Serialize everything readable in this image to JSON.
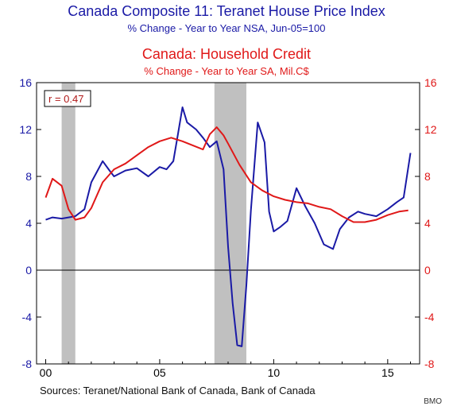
{
  "chart_data": {
    "type": "line",
    "titles": [
      {
        "text": "Canada Composite 11: Teranet House Price Index",
        "color": "#1a1aa6"
      },
      {
        "text": "% Change - Year to Year   NSA, Jun-05=100",
        "color": "#1a1aa6"
      },
      {
        "text": "Canada: Household Credit",
        "color": "#e01818"
      },
      {
        "text": "% Change - Year to Year   SA, Mil.C$",
        "color": "#e01818"
      }
    ],
    "annotation": "r = 0.47",
    "x_ticks": [
      "00",
      "05",
      "10",
      "15"
    ],
    "x_tick_values": [
      2000,
      2005,
      2010,
      2015
    ],
    "xlim": [
      1999.6,
      2016.4
    ],
    "left_axis": {
      "ylim": [
        -8,
        16
      ],
      "ticks": [
        -8,
        -4,
        0,
        4,
        8,
        12,
        16
      ],
      "color": "#1a1aa6"
    },
    "right_axis": {
      "ylim": [
        -8,
        16
      ],
      "ticks": [
        -8,
        -4,
        0,
        4,
        8,
        12,
        16
      ],
      "color": "#e01818"
    },
    "recessions": [
      [
        2000.7,
        2001.3
      ],
      [
        2007.4,
        2008.8
      ]
    ],
    "series": [
      {
        "color": "#1a1aa6",
        "axis": "left",
        "x": [
          2000.0,
          2000.3,
          2000.7,
          2001.0,
          2001.3,
          2001.7,
          2002.0,
          2002.5,
          2002.8,
          2003.0,
          2003.5,
          2004.0,
          2004.5,
          2005.0,
          2005.3,
          2005.6,
          2005.8,
          2006.0,
          2006.2,
          2006.6,
          2006.9,
          2007.2,
          2007.5,
          2007.8,
          2008.0,
          2008.2,
          2008.4,
          2008.6,
          2008.8,
          2009.0,
          2009.3,
          2009.6,
          2009.8,
          2010.0,
          2010.3,
          2010.6,
          2011.0,
          2011.4,
          2011.8,
          2012.2,
          2012.6,
          2012.9,
          2013.3,
          2013.7,
          2014.0,
          2014.5,
          2015.0,
          2015.4,
          2015.7,
          2016.0
        ],
        "values": [
          4.3,
          4.5,
          4.4,
          4.5,
          4.6,
          5.2,
          7.5,
          9.3,
          8.5,
          8.0,
          8.5,
          8.7,
          8.0,
          8.8,
          8.6,
          9.3,
          11.6,
          13.9,
          12.6,
          12.0,
          11.3,
          10.5,
          11.0,
          8.6,
          2.0,
          -2.8,
          -6.4,
          -6.5,
          -1.3,
          5.1,
          12.6,
          10.9,
          5.0,
          3.3,
          3.7,
          4.2,
          7.0,
          5.4,
          4.0,
          2.2,
          1.8,
          3.5,
          4.5,
          5.0,
          4.8,
          4.6,
          5.2,
          5.8,
          6.2,
          10.0
        ]
      },
      {
        "color": "#e01818",
        "axis": "right",
        "x": [
          2000.0,
          2000.3,
          2000.7,
          2001.0,
          2001.3,
          2001.7,
          2002.0,
          2002.5,
          2003.0,
          2003.5,
          2004.0,
          2004.5,
          2005.0,
          2005.5,
          2006.0,
          2006.5,
          2006.9,
          2007.2,
          2007.5,
          2007.8,
          2008.0,
          2008.5,
          2009.0,
          2009.5,
          2010.0,
          2010.5,
          2011.0,
          2011.5,
          2012.0,
          2012.5,
          2013.0,
          2013.5,
          2014.0,
          2014.5,
          2015.0,
          2015.5,
          2015.9
        ],
        "values": [
          6.2,
          7.8,
          7.2,
          5.2,
          4.3,
          4.5,
          5.3,
          7.5,
          8.6,
          9.1,
          9.8,
          10.5,
          11.0,
          11.3,
          11.0,
          10.6,
          10.3,
          11.6,
          12.2,
          11.5,
          10.8,
          9.0,
          7.5,
          6.8,
          6.3,
          6.0,
          5.8,
          5.7,
          5.4,
          5.2,
          4.6,
          4.1,
          4.1,
          4.3,
          4.7,
          5.0,
          5.1
        ]
      }
    ]
  },
  "footer": {
    "source": "Sources:  Teranet/National Bank of Canada, Bank of Canada",
    "credit": "BMO"
  }
}
